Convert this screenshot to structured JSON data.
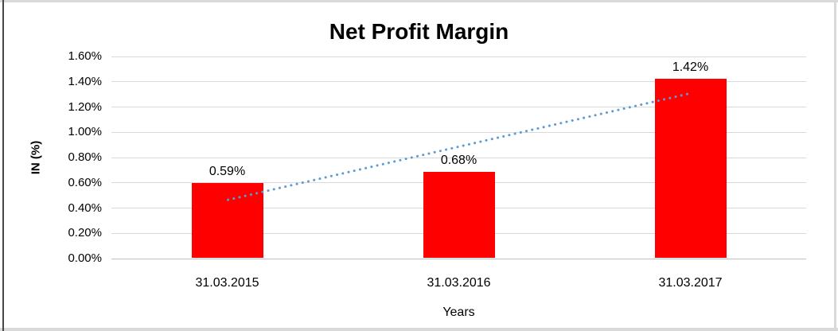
{
  "chart_data": {
    "type": "bar",
    "title": "Net Profit Margin",
    "categories": [
      "31.03.2015",
      "31.03.2016",
      "31.03.2017"
    ],
    "values": [
      0.59,
      0.68,
      1.42
    ],
    "data_labels": [
      "0.59%",
      "0.68%",
      "1.42%"
    ],
    "xlabel": "Years",
    "ylabel": "IN (%)",
    "ylim": [
      0,
      1.6
    ],
    "ytick_step": 0.2,
    "ytick_labels": [
      "0.00%",
      "0.20%",
      "0.40%",
      "0.60%",
      "0.80%",
      "1.00%",
      "1.20%",
      "1.40%",
      "1.60%"
    ],
    "grid": true,
    "legend": "none",
    "colors": {
      "bar": "#FF0000",
      "gridline": "#D9D9D9",
      "axis_line": "#BFBFBF",
      "text": "#000000",
      "trendline": "#5B9BD5",
      "frame": "#D9D9D9"
    },
    "trendline": {
      "type": "linear",
      "style": "dotted",
      "color": "#5B9BD5",
      "start_value": 0.465,
      "end_value": 1.31
    }
  }
}
